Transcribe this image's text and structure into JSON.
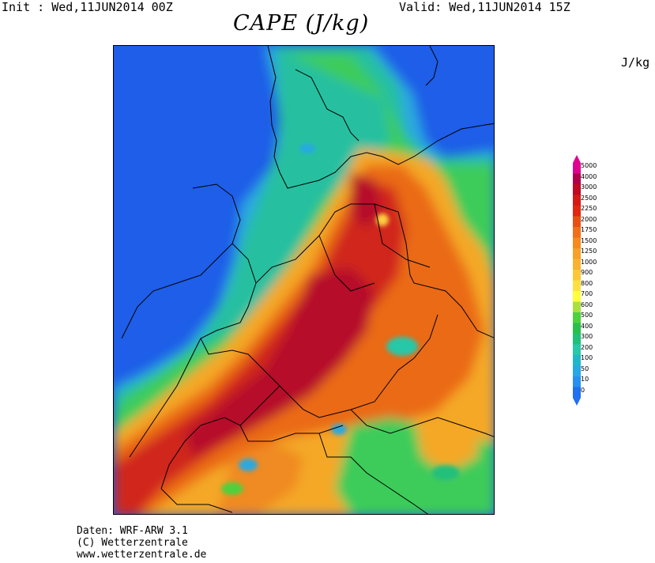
{
  "header": {
    "init": "Init : Wed,11JUN2014 00Z",
    "valid": "Valid: Wed,11JUN2014 15Z",
    "title": "CAPE (J/kg)",
    "unit": "J/kg"
  },
  "credits": [
    "Daten: WRF-ARW 3.1",
    "(C) Wetterzentrale",
    "www.wetterzentrale.de"
  ],
  "legend": {
    "levels": [
      "5000",
      "4000",
      "3000",
      "2500",
      "2250",
      "2000",
      "1750",
      "1500",
      "1250",
      "1000",
      "900",
      "800",
      "700",
      "600",
      "500",
      "400",
      "300",
      "200",
      "100",
      "50",
      "10",
      "0"
    ],
    "colors": [
      "#e00090",
      "#b0004a",
      "#c00a20",
      "#d51a15",
      "#e02810",
      "#e85012",
      "#f06f18",
      "#f48a20",
      "#f7a02a",
      "#f9b330",
      "#fcc838",
      "#ffe040",
      "#ffff3a",
      "#a8e040",
      "#4cd23c",
      "#28c04a",
      "#20c07a",
      "#28c8a8",
      "#20b8c8",
      "#28a8e4",
      "#2890f0",
      "#2070f0"
    ]
  }
}
